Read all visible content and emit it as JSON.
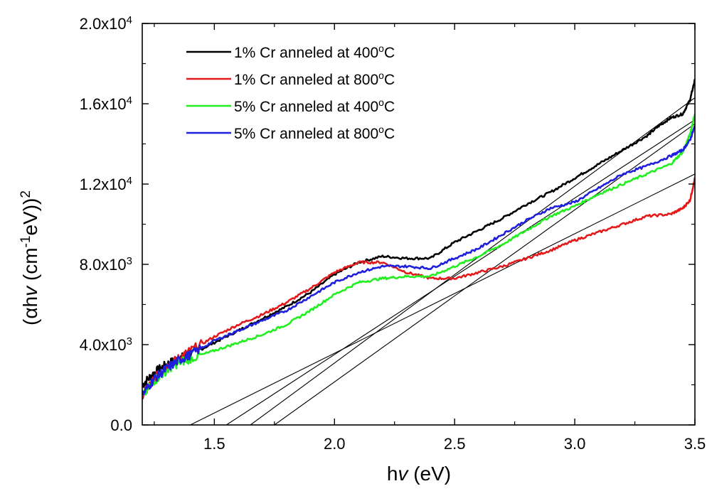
{
  "chart_data": {
    "type": "line",
    "title": "",
    "xlabel": "hv (eV)",
    "ylabel": "(αhv (cm-1eV))2",
    "xlim": [
      1.2,
      3.5
    ],
    "ylim": [
      0,
      20000
    ],
    "grid": false,
    "legend_position": "top-left",
    "x_ticks": [
      {
        "value": 1.5,
        "label": "1.5"
      },
      {
        "value": 2.0,
        "label": "2.0"
      },
      {
        "value": 2.5,
        "label": "2.5"
      },
      {
        "value": 3.0,
        "label": "3.0"
      },
      {
        "value": 3.5,
        "label": "3.5"
      }
    ],
    "y_ticks": [
      {
        "value": 0,
        "base": "0.0",
        "exp": ""
      },
      {
        "value": 4000,
        "base": "4.0x10",
        "exp": "3"
      },
      {
        "value": 8000,
        "base": "8.0x10",
        "exp": "3"
      },
      {
        "value": 12000,
        "base": "1.2x10",
        "exp": "4"
      },
      {
        "value": 16000,
        "base": "1.6x10",
        "exp": "4"
      },
      {
        "value": 20000,
        "base": "2.0x10",
        "exp": "4"
      }
    ],
    "series": [
      {
        "name": "1% Cr anneled at 400°C",
        "legend_main": "1% Cr anneled at 400",
        "legend_sup": "o",
        "legend_tail": "C",
        "color": "#000000",
        "x": [
          1.2,
          1.25,
          1.3,
          1.35,
          1.4,
          1.5,
          1.6,
          1.7,
          1.8,
          1.9,
          2.0,
          2.1,
          2.2,
          2.3,
          2.4,
          2.5,
          2.6,
          2.7,
          2.8,
          2.9,
          3.0,
          3.1,
          3.2,
          3.3,
          3.35,
          3.4,
          3.45,
          3.48,
          3.5
        ],
        "y": [
          2000,
          2600,
          3000,
          3300,
          3500,
          4100,
          4700,
          5300,
          5900,
          6600,
          7500,
          8100,
          8400,
          8300,
          8300,
          9100,
          9700,
          10300,
          11000,
          11600,
          12300,
          13000,
          13700,
          14400,
          14900,
          15300,
          15500,
          16200,
          17200
        ]
      },
      {
        "name": "1% Cr anneled at 800°C",
        "legend_main": "1% Cr anneled at 800",
        "legend_sup": "o",
        "legend_tail": "C",
        "color": "#e31a1c",
        "x": [
          1.2,
          1.25,
          1.3,
          1.35,
          1.4,
          1.5,
          1.6,
          1.7,
          1.8,
          1.9,
          2.0,
          2.1,
          2.2,
          2.3,
          2.4,
          2.5,
          2.6,
          2.7,
          2.8,
          2.9,
          3.0,
          3.1,
          3.2,
          3.3,
          3.4,
          3.45,
          3.48,
          3.5
        ],
        "y": [
          1500,
          2300,
          2900,
          3300,
          3700,
          4400,
          5000,
          5500,
          6100,
          6800,
          7600,
          8100,
          8100,
          7600,
          7300,
          7300,
          7600,
          7900,
          8300,
          8700,
          9200,
          9600,
          10000,
          10400,
          10500,
          10800,
          11200,
          12300
        ]
      },
      {
        "name": "5% Cr anneled at 400°C",
        "legend_main": "5% Cr anneled at 400",
        "legend_sup": "o",
        "legend_tail": "C",
        "color": "#22ee22",
        "x": [
          1.2,
          1.25,
          1.3,
          1.35,
          1.4,
          1.5,
          1.6,
          1.7,
          1.8,
          1.9,
          2.0,
          2.1,
          2.2,
          2.3,
          2.4,
          2.5,
          2.6,
          2.7,
          2.8,
          2.9,
          3.0,
          3.1,
          3.2,
          3.3,
          3.4,
          3.45,
          3.48,
          3.5
        ],
        "y": [
          1400,
          2200,
          2700,
          3100,
          3300,
          3700,
          4100,
          4500,
          5000,
          5700,
          6500,
          7100,
          7300,
          7400,
          7400,
          7900,
          8400,
          9000,
          9700,
          10400,
          10900,
          11500,
          12000,
          12500,
          13000,
          13600,
          14500,
          15500
        ]
      },
      {
        "name": "5% Cr anneled at 800°C",
        "legend_main": "5% Cr anneled at 800",
        "legend_sup": "o",
        "legend_tail": "C",
        "color": "#1f1fdd",
        "x": [
          1.2,
          1.25,
          1.3,
          1.35,
          1.4,
          1.5,
          1.6,
          1.7,
          1.8,
          1.9,
          2.0,
          2.1,
          2.2,
          2.3,
          2.4,
          2.5,
          2.6,
          2.7,
          2.8,
          2.9,
          3.0,
          3.1,
          3.2,
          3.3,
          3.4,
          3.45,
          3.48,
          3.5
        ],
        "y": [
          1500,
          2300,
          2800,
          3200,
          3500,
          4200,
          4700,
          5200,
          5700,
          6400,
          7100,
          7600,
          7900,
          7900,
          7800,
          8300,
          8800,
          9500,
          10200,
          10800,
          11100,
          11800,
          12500,
          12900,
          13400,
          13700,
          14200,
          14900
        ]
      }
    ],
    "fit_lines": [
      {
        "x": [
          1.4,
          3.5
        ],
        "y": [
          0,
          12500
        ]
      },
      {
        "x": [
          1.55,
          3.5
        ],
        "y": [
          0,
          15200
        ]
      },
      {
        "x": [
          1.65,
          3.5
        ],
        "y": [
          0,
          16300
        ]
      },
      {
        "x": [
          1.75,
          3.5
        ],
        "y": [
          0,
          15000
        ]
      }
    ]
  }
}
